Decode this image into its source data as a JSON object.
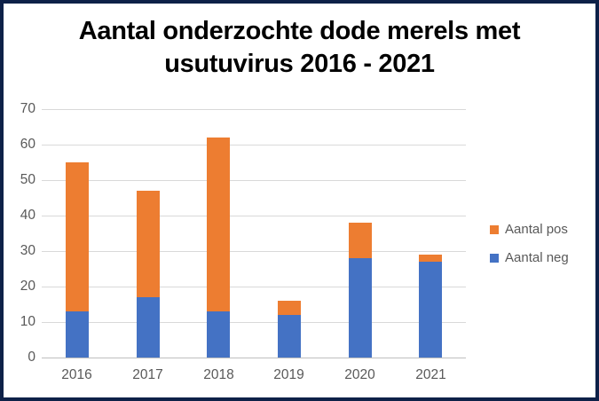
{
  "chart_data": {
    "type": "bar",
    "stacked": true,
    "title": "Aantal onderzochte dode merels met usutuvirus 2016 - 2021",
    "title_line1": "Aantal onderzochte dode merels met",
    "title_line2": "usutuvirus 2016 - 2021",
    "categories": [
      "2016",
      "2017",
      "2018",
      "2019",
      "2020",
      "2021"
    ],
    "series": [
      {
        "name": "Aantal neg",
        "color": "#4472C4",
        "values": [
          13,
          17,
          13,
          12,
          28,
          27
        ]
      },
      {
        "name": "Aantal pos",
        "color": "#ED7D31",
        "values": [
          42,
          30,
          49,
          4,
          10,
          2
        ]
      }
    ],
    "totals": [
      55,
      47,
      62,
      16,
      38,
      29
    ],
    "legend": [
      {
        "label": "Aantal pos",
        "color": "#ED7D31"
      },
      {
        "label": "Aantal neg",
        "color": "#4472C4"
      }
    ],
    "legend_position": "right",
    "xlabel": "",
    "ylabel": "",
    "ylim": [
      0,
      70
    ],
    "yticks": [
      0,
      10,
      20,
      30,
      40,
      50,
      60,
      70
    ],
    "grid": true
  },
  "colors": {
    "frame_border": "#0E2148",
    "background": "#FFFFFF",
    "gridline": "#D9D9D9",
    "axis_line": "#BFBFBF",
    "tick_text": "#595959",
    "title_text": "#000000"
  }
}
